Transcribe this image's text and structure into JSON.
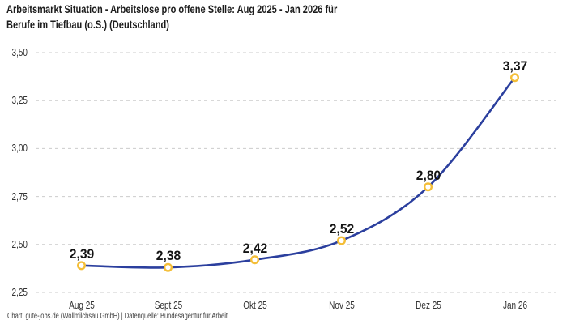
{
  "header": {
    "title_line1": "Arbeitsmarkt Situation - Arbeitslose pro offene Stelle: Aug 2025 - Jan 2026 für",
    "title_line2": "Berufe im Tiefbau (o.S.) (Deutschland)"
  },
  "footer": {
    "credit": "Chart: gute-jobs.de (Wollmilchsau GmbH) | Datenquelle: Bundesagentur für Arbeit"
  },
  "chart_data": {
    "type": "line",
    "title": "Arbeitsmarkt Situation - Arbeitslose pro offene Stelle: Aug 2025 - Jan 2026 für Berufe im Tiefbau (o.S.) (Deutschland)",
    "categories": [
      "Aug 25",
      "Sept 25",
      "Okt 25",
      "Nov 25",
      "Dez 25",
      "Jan 26"
    ],
    "values": [
      2.39,
      2.38,
      2.42,
      2.52,
      2.8,
      3.37
    ],
    "value_labels": [
      "2,39",
      "2,38",
      "2,42",
      "2,52",
      "2,80",
      "3,37"
    ],
    "xlabel": "",
    "ylabel": "",
    "ylim": [
      2.25,
      3.5
    ],
    "yticks": [
      3.5,
      3.25,
      3.0,
      2.75,
      2.5,
      2.25
    ],
    "ytick_labels": [
      "3,50",
      "3,25",
      "3,00",
      "2,75",
      "2,50",
      "2,25"
    ],
    "grid": "horizontal-dashed",
    "legend": "none",
    "curve": "smooth",
    "colors": {
      "line": "#2B3F9E",
      "marker_ring": "#F4BE37",
      "marker_fill": "#FFFFFF",
      "grid": "#CBCBCB",
      "title_text": "#1C1C1C",
      "tick_text": "#333333",
      "credit_text": "#3C3C3C"
    }
  }
}
